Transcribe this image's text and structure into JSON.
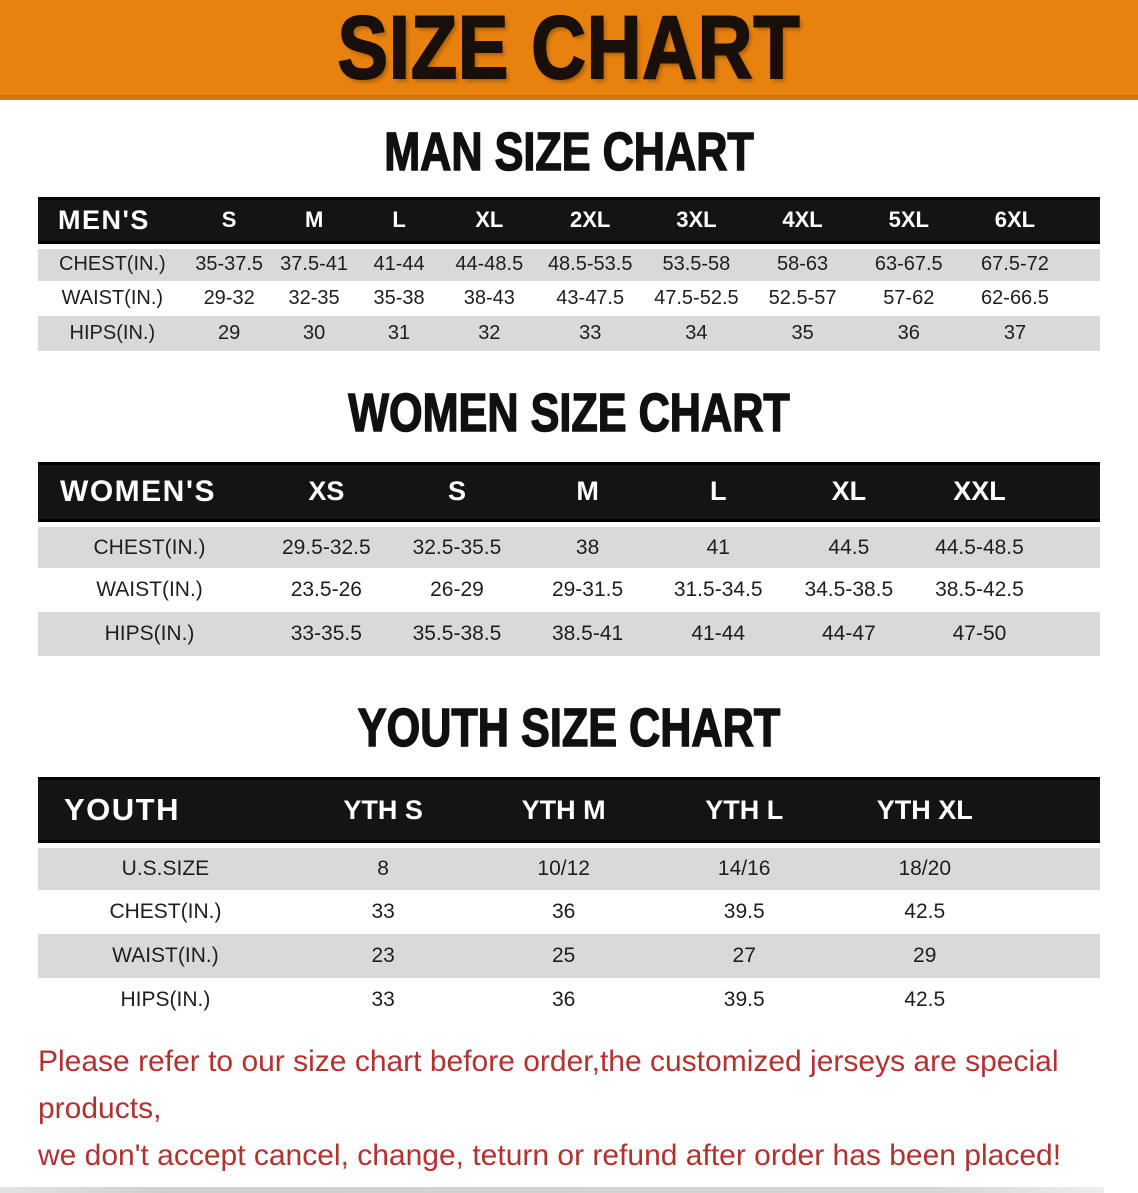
{
  "banner": {
    "title": "SIZE CHART"
  },
  "colors": {
    "banner_bg": "#E8820E",
    "banner_border": "#CF750E",
    "title_text": "#181008",
    "header_bar": "#141414",
    "row_shade": "#D9D9D9",
    "notice_text": "#B23230"
  },
  "sections": [
    {
      "id": "men",
      "heading": "MAN SIZE CHART",
      "corner_label": "MEN'S",
      "columns": [
        "S",
        "M",
        "L",
        "XL",
        "2XL",
        "3XL",
        "4XL",
        "5XL",
        "6XL"
      ],
      "rows": [
        {
          "label": "CHEST(IN.)",
          "values": [
            "35-37.5",
            "37.5-41",
            "41-44",
            "44-48.5",
            "48.5-53.5",
            "53.5-58",
            "58-63",
            "63-67.5",
            "67.5-72"
          ]
        },
        {
          "label": "WAIST(IN.)",
          "values": [
            "29-32",
            "32-35",
            "35-38",
            "38-43",
            "43-47.5",
            "47.5-52.5",
            "52.5-57",
            "57-62",
            "62-66.5"
          ]
        },
        {
          "label": "HIPS(IN.)",
          "values": [
            "29",
            "30",
            "31",
            "32",
            "33",
            "34",
            "35",
            "36",
            "37"
          ]
        }
      ]
    },
    {
      "id": "women",
      "heading": "WOMEN SIZE CHART",
      "corner_label": "WOMEN'S",
      "columns": [
        "XS",
        "S",
        "M",
        "L",
        "XL",
        "XXL"
      ],
      "rows": [
        {
          "label": "CHEST(IN.)",
          "values": [
            "29.5-32.5",
            "32.5-35.5",
            "38",
            "41",
            "44.5",
            "44.5-48.5"
          ]
        },
        {
          "label": "WAIST(IN.)",
          "values": [
            "23.5-26",
            "26-29",
            "29-31.5",
            "31.5-34.5",
            "34.5-38.5",
            "38.5-42.5"
          ]
        },
        {
          "label": "HIPS(IN.)",
          "values": [
            "33-35.5",
            "35.5-38.5",
            "38.5-41",
            "41-44",
            "44-47",
            "47-50"
          ]
        }
      ]
    },
    {
      "id": "youth",
      "heading": "YOUTH SIZE CHART",
      "corner_label": "YOUTH",
      "columns": [
        "YTH S",
        "YTH M",
        "YTH L",
        "YTH XL"
      ],
      "rows": [
        {
          "label": "U.S.SIZE",
          "values": [
            "8",
            "10/12",
            "14/16",
            "18/20"
          ]
        },
        {
          "label": "CHEST(IN.)",
          "values": [
            "33",
            "36",
            "39.5",
            "42.5"
          ]
        },
        {
          "label": "WAIST(IN.)",
          "values": [
            "23",
            "25",
            "27",
            "29"
          ]
        },
        {
          "label": "HIPS(IN.)",
          "values": [
            "33",
            "36",
            "39.5",
            "42.5"
          ]
        }
      ]
    }
  ],
  "footer": {
    "line1": "Please refer to our size chart before order,the customized jerseys are special products,",
    "line2": "we don't accept cancel, change, teturn or refund after order has been placed!"
  }
}
